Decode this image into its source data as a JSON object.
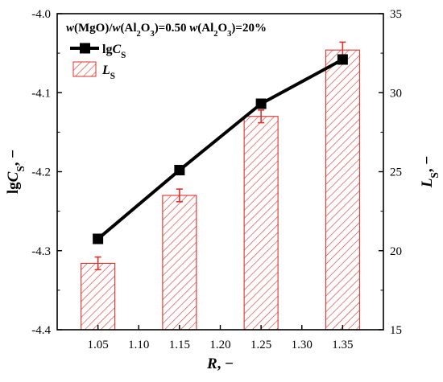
{
  "chart_data": {
    "type": "bar",
    "annotation": {
      "parts": [
        {
          "t": "w",
          "style": "italic"
        },
        {
          "t": "(MgO)/",
          "style": "normal"
        },
        {
          "t": "w",
          "style": "italic"
        },
        {
          "t": "(Al",
          "style": "normal"
        },
        {
          "t": "2",
          "style": "sub"
        },
        {
          "t": "O",
          "style": "normal"
        },
        {
          "t": "3",
          "style": "sub"
        },
        {
          "t": ")=0.50  ",
          "style": "normal"
        },
        {
          "t": "w",
          "style": "italic"
        },
        {
          "t": "(Al",
          "style": "normal"
        },
        {
          "t": "2",
          "style": "sub"
        },
        {
          "t": "O",
          "style": "normal"
        },
        {
          "t": "3",
          "style": "sub"
        },
        {
          "t": ")=20%",
          "style": "normal"
        }
      ]
    },
    "xaxis": {
      "title_parts": [
        {
          "t": "R",
          "style": "italic"
        },
        {
          "t": ", −",
          "style": "normal"
        }
      ],
      "range": [
        1.0,
        1.4
      ],
      "ticks": [
        1.05,
        1.1,
        1.15,
        1.2,
        1.25,
        1.3,
        1.35
      ],
      "tick_labels": [
        "1.05",
        "1.10",
        "1.15",
        "1.20",
        "1.25",
        "1.30",
        "1.35"
      ]
    },
    "yaxis_left": {
      "title_parts": [
        {
          "t": "lg",
          "style": "normal"
        },
        {
          "t": "C",
          "style": "italic"
        },
        {
          "t": "S",
          "style": "sub"
        },
        {
          "t": ", −",
          "style": "normal"
        }
      ],
      "range": [
        -4.4,
        -4.0
      ],
      "ticks": [
        -4.4,
        -4.3,
        -4.2,
        -4.1,
        -4.0
      ],
      "tick_labels": [
        "-4.4",
        "-4.3",
        "-4.2",
        "-4.1",
        "-4.0"
      ]
    },
    "yaxis_right": {
      "title_parts": [
        {
          "t": "L",
          "style": "italic"
        },
        {
          "t": "S",
          "style": "sub"
        },
        {
          "t": ", −",
          "style": "normal"
        }
      ],
      "range": [
        15,
        35
      ],
      "ticks": [
        15,
        20,
        25,
        30,
        35
      ],
      "tick_labels": [
        "15",
        "20",
        "25",
        "30",
        "35"
      ]
    },
    "series": [
      {
        "name_parts": [
          {
            "t": "lg",
            "style": "normal"
          },
          {
            "t": "C",
            "style": "italic"
          },
          {
            "t": "S",
            "style": "sub"
          }
        ],
        "kind": "line",
        "axis": "left",
        "x": [
          1.05,
          1.15,
          1.25,
          1.35
        ],
        "y": [
          -4.285,
          -4.198,
          -4.114,
          -4.058
        ],
        "color": "#000000"
      },
      {
        "name_parts": [
          {
            "t": "L",
            "style": "italic"
          },
          {
            "t": "S",
            "style": "sub"
          }
        ],
        "kind": "bar",
        "axis": "right",
        "x": [
          1.05,
          1.15,
          1.25,
          1.35
        ],
        "y": [
          19.2,
          23.5,
          28.5,
          32.7
        ],
        "error": [
          0.4,
          0.4,
          0.4,
          0.5
        ],
        "color": "#e0302a",
        "error_color": "#e0302a"
      }
    ],
    "legend": "top-left",
    "grid": false
  }
}
